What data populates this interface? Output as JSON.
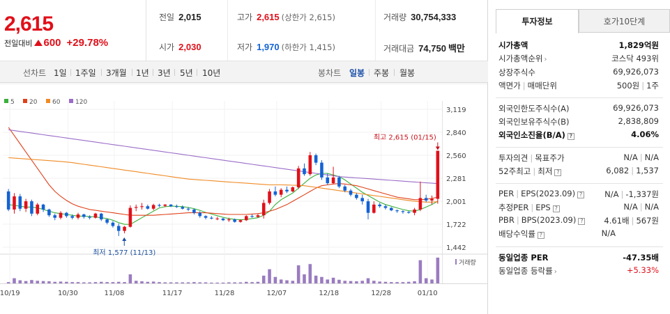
{
  "quote": {
    "price": "2,615",
    "change_label": "전일대비",
    "change_amount": "600",
    "change_rate": "+29.78%",
    "prev_label": "전일",
    "prev": "2,015",
    "open_label": "시가",
    "open": "2,030",
    "high_label": "고가",
    "high": "2,615",
    "high_note": "(상한가 2,615)",
    "low_label": "저가",
    "low": "1,970",
    "low_note": "(하한가 1,415)",
    "volume_label": "거래량",
    "volume": "30,754,333",
    "value_label": "거래대금",
    "value": "74,750",
    "value_unit": "백만"
  },
  "toolbar": {
    "line_label": "선차트",
    "periods": [
      "1일",
      "1주일",
      "3개월",
      "1년",
      "3년",
      "5년",
      "10년"
    ],
    "candle_label": "봉차트",
    "candles": [
      "일봉",
      "주봉",
      "월봉"
    ],
    "selected_candle": "일봉"
  },
  "chart_data": {
    "type": "candlestick",
    "legend": [
      {
        "name": "5",
        "color": "#3ab03a"
      },
      {
        "name": "20",
        "color": "#e0401a"
      },
      {
        "name": "60",
        "color": "#f08a24"
      },
      {
        "name": "120",
        "color": "#9a6cc8"
      }
    ],
    "yticks": [
      "3,119",
      "2,840",
      "2,560",
      "2,281",
      "2,001",
      "1,722",
      "1,442"
    ],
    "ylim": [
      1442,
      3119
    ],
    "xticks": [
      "10/19",
      "10/30",
      "11/08",
      "11/17",
      "11/28",
      "12/07",
      "12/18",
      "12/28",
      "01/10"
    ],
    "max_annotation": "최고 2,615 (01/15)",
    "min_annotation": "최저 1,577 (11/13)",
    "volume_label": "거래량",
    "up_color": "#e0101a",
    "down_color": "#1462d4",
    "candles": [
      {
        "o": 2120,
        "h": 2150,
        "l": 1880,
        "c": 1900,
        "v": 0.05
      },
      {
        "o": 1900,
        "h": 2100,
        "l": 1850,
        "c": 2060,
        "v": 0.2
      },
      {
        "o": 2060,
        "h": 2090,
        "l": 1880,
        "c": 1910,
        "v": 0.12
      },
      {
        "o": 1910,
        "h": 2030,
        "l": 1870,
        "c": 2000,
        "v": 0.09
      },
      {
        "o": 2000,
        "h": 2020,
        "l": 1820,
        "c": 1850,
        "v": 0.13
      },
      {
        "o": 1850,
        "h": 1980,
        "l": 1830,
        "c": 1960,
        "v": 0.1
      },
      {
        "o": 1960,
        "h": 1970,
        "l": 1870,
        "c": 1900,
        "v": 0.09
      },
      {
        "o": 1900,
        "h": 1910,
        "l": 1810,
        "c": 1830,
        "v": 0.08
      },
      {
        "o": 1830,
        "h": 1850,
        "l": 1770,
        "c": 1800,
        "v": 0.06
      },
      {
        "o": 1800,
        "h": 1880,
        "l": 1780,
        "c": 1860,
        "v": 0.07
      },
      {
        "o": 1860,
        "h": 1870,
        "l": 1800,
        "c": 1820,
        "v": 0.06
      },
      {
        "o": 1820,
        "h": 1840,
        "l": 1780,
        "c": 1800,
        "v": 0.05
      },
      {
        "o": 1800,
        "h": 1860,
        "l": 1780,
        "c": 1840,
        "v": 0.05
      },
      {
        "o": 1840,
        "h": 1850,
        "l": 1790,
        "c": 1810,
        "v": 0.04
      },
      {
        "o": 1810,
        "h": 1830,
        "l": 1780,
        "c": 1800,
        "v": 0.04
      },
      {
        "o": 1800,
        "h": 1860,
        "l": 1790,
        "c": 1850,
        "v": 0.05
      },
      {
        "o": 1850,
        "h": 1860,
        "l": 1760,
        "c": 1780,
        "v": 0.06
      },
      {
        "o": 1780,
        "h": 1790,
        "l": 1720,
        "c": 1740,
        "v": 0.05
      },
      {
        "o": 1740,
        "h": 1760,
        "l": 1680,
        "c": 1700,
        "v": 0.05
      },
      {
        "o": 1700,
        "h": 1730,
        "l": 1577,
        "c": 1640,
        "v": 0.06
      },
      {
        "o": 1640,
        "h": 1700,
        "l": 1610,
        "c": 1690,
        "v": 0.05
      },
      {
        "o": 1690,
        "h": 1950,
        "l": 1680,
        "c": 1920,
        "v": 0.35
      },
      {
        "o": 1920,
        "h": 1960,
        "l": 1880,
        "c": 1930,
        "v": 0.1
      },
      {
        "o": 1930,
        "h": 1980,
        "l": 1900,
        "c": 1940,
        "v": 0.08
      },
      {
        "o": 1940,
        "h": 1960,
        "l": 1900,
        "c": 1910,
        "v": 0.06
      },
      {
        "o": 1910,
        "h": 1970,
        "l": 1890,
        "c": 1955,
        "v": 0.07
      },
      {
        "o": 1955,
        "h": 1970,
        "l": 1930,
        "c": 1945,
        "v": 0.05
      },
      {
        "o": 1945,
        "h": 1965,
        "l": 1930,
        "c": 1960,
        "v": 0.04
      },
      {
        "o": 1960,
        "h": 1965,
        "l": 1930,
        "c": 1940,
        "v": 0.04
      },
      {
        "o": 1940,
        "h": 1960,
        "l": 1920,
        "c": 1930,
        "v": 0.04
      },
      {
        "o": 1930,
        "h": 1950,
        "l": 1900,
        "c": 1910,
        "v": 0.04
      },
      {
        "o": 1910,
        "h": 1930,
        "l": 1880,
        "c": 1900,
        "v": 0.04
      },
      {
        "o": 1900,
        "h": 1910,
        "l": 1840,
        "c": 1860,
        "v": 0.05
      },
      {
        "o": 1860,
        "h": 1880,
        "l": 1800,
        "c": 1820,
        "v": 0.04
      },
      {
        "o": 1820,
        "h": 1830,
        "l": 1780,
        "c": 1800,
        "v": 0.04
      },
      {
        "o": 1800,
        "h": 1820,
        "l": 1780,
        "c": 1790,
        "v": 0.03
      },
      {
        "o": 1790,
        "h": 1810,
        "l": 1770,
        "c": 1790,
        "v": 0.03
      },
      {
        "o": 1790,
        "h": 1800,
        "l": 1760,
        "c": 1770,
        "v": 0.03
      },
      {
        "o": 1770,
        "h": 1800,
        "l": 1750,
        "c": 1780,
        "v": 0.04
      },
      {
        "o": 1780,
        "h": 1790,
        "l": 1740,
        "c": 1750,
        "v": 0.04
      },
      {
        "o": 1750,
        "h": 1780,
        "l": 1740,
        "c": 1770,
        "v": 0.04
      },
      {
        "o": 1770,
        "h": 1830,
        "l": 1760,
        "c": 1820,
        "v": 0.06
      },
      {
        "o": 1820,
        "h": 1840,
        "l": 1800,
        "c": 1810,
        "v": 0.05
      },
      {
        "o": 1810,
        "h": 1850,
        "l": 1800,
        "c": 1830,
        "v": 0.06
      },
      {
        "o": 1830,
        "h": 2020,
        "l": 1790,
        "c": 1980,
        "v": 0.3
      },
      {
        "o": 1980,
        "h": 2150,
        "l": 1960,
        "c": 2120,
        "v": 0.55
      },
      {
        "o": 2120,
        "h": 2180,
        "l": 2060,
        "c": 2080,
        "v": 0.25
      },
      {
        "o": 2080,
        "h": 2160,
        "l": 2050,
        "c": 2140,
        "v": 0.15
      },
      {
        "o": 2140,
        "h": 2180,
        "l": 2100,
        "c": 2120,
        "v": 0.12
      },
      {
        "o": 2120,
        "h": 2180,
        "l": 2110,
        "c": 2170,
        "v": 0.1
      },
      {
        "o": 2170,
        "h": 2430,
        "l": 2150,
        "c": 2400,
        "v": 0.7
      },
      {
        "o": 2400,
        "h": 2460,
        "l": 2310,
        "c": 2330,
        "v": 0.35
      },
      {
        "o": 2330,
        "h": 2600,
        "l": 2310,
        "c": 2560,
        "v": 0.75
      },
      {
        "o": 2560,
        "h": 2580,
        "l": 2440,
        "c": 2470,
        "v": 0.3
      },
      {
        "o": 2470,
        "h": 2500,
        "l": 2260,
        "c": 2290,
        "v": 0.25
      },
      {
        "o": 2290,
        "h": 2340,
        "l": 2200,
        "c": 2220,
        "v": 0.15
      },
      {
        "o": 2220,
        "h": 2420,
        "l": 2210,
        "c": 2290,
        "v": 0.22
      },
      {
        "o": 2290,
        "h": 2310,
        "l": 2160,
        "c": 2180,
        "v": 0.14
      },
      {
        "o": 2180,
        "h": 2200,
        "l": 2110,
        "c": 2130,
        "v": 0.1
      },
      {
        "o": 2130,
        "h": 2150,
        "l": 2060,
        "c": 2080,
        "v": 0.09
      },
      {
        "o": 2080,
        "h": 2100,
        "l": 2020,
        "c": 2040,
        "v": 0.08
      },
      {
        "o": 2040,
        "h": 2080,
        "l": 1960,
        "c": 2000,
        "v": 0.1
      },
      {
        "o": 2000,
        "h": 2030,
        "l": 1780,
        "c": 1860,
        "v": 0.2
      },
      {
        "o": 1860,
        "h": 2000,
        "l": 1850,
        "c": 1960,
        "v": 0.1
      },
      {
        "o": 1960,
        "h": 1980,
        "l": 1920,
        "c": 1940,
        "v": 0.07
      },
      {
        "o": 1940,
        "h": 1960,
        "l": 1900,
        "c": 1920,
        "v": 0.06
      },
      {
        "o": 1920,
        "h": 1930,
        "l": 1880,
        "c": 1890,
        "v": 0.05
      },
      {
        "o": 1890,
        "h": 1900,
        "l": 1860,
        "c": 1880,
        "v": 0.05
      },
      {
        "o": 1880,
        "h": 1890,
        "l": 1850,
        "c": 1870,
        "v": 0.05
      },
      {
        "o": 1870,
        "h": 1880,
        "l": 1850,
        "c": 1860,
        "v": 0.06
      },
      {
        "o": 1860,
        "h": 1920,
        "l": 1830,
        "c": 1900,
        "v": 0.08
      },
      {
        "o": 1900,
        "h": 2240,
        "l": 1880,
        "c": 2040,
        "v": 0.9
      },
      {
        "o": 2040,
        "h": 2080,
        "l": 1990,
        "c": 2010,
        "v": 0.2
      },
      {
        "o": 2010,
        "h": 2070,
        "l": 1960,
        "c": 2030,
        "v": 0.15
      },
      {
        "o": 2030,
        "h": 2615,
        "l": 1970,
        "c": 2615,
        "v": 1.0
      }
    ],
    "ma": {
      "5": [
        1960,
        1950,
        1940,
        1930,
        1930,
        1920,
        1900,
        1880,
        1860,
        1850,
        1840,
        1830,
        1820,
        1820,
        1815,
        1810,
        1800,
        1790,
        1770,
        1740,
        1720,
        1720,
        1760,
        1800,
        1840,
        1880,
        1920,
        1935,
        1940,
        1940,
        1935,
        1925,
        1910,
        1890,
        1865,
        1845,
        1825,
        1805,
        1790,
        1780,
        1775,
        1780,
        1790,
        1800,
        1830,
        1880,
        1960,
        2020,
        2060,
        2100,
        2160,
        2220,
        2280,
        2320,
        2340,
        2340,
        2320,
        2300,
        2260,
        2210,
        2160,
        2110,
        2070,
        2030,
        1990,
        1960,
        1940,
        1920,
        1900,
        1885,
        1880,
        1900,
        1930,
        1960,
        2000
      ],
      "20": [
        2900,
        2800,
        2700,
        2600,
        2500,
        2400,
        2300,
        2200,
        2120,
        2060,
        2010,
        1970,
        1940,
        1920,
        1900,
        1890,
        1880,
        1870,
        1860,
        1850,
        1840,
        1830,
        1830,
        1830,
        1830,
        1830,
        1835,
        1840,
        1845,
        1850,
        1855,
        1860,
        1860,
        1860,
        1860,
        1855,
        1850,
        1845,
        1840,
        1840,
        1840,
        1840,
        1845,
        1850,
        1860,
        1880,
        1900,
        1930,
        1960,
        2000,
        2040,
        2080,
        2120,
        2160,
        2190,
        2200,
        2210,
        2215,
        2210,
        2200,
        2190,
        2170,
        2150,
        2130,
        2110,
        2090,
        2070,
        2050,
        2040,
        2030,
        2020,
        2020,
        2025,
        2035,
        2050
      ],
      "60": [
        2530,
        2525,
        2520,
        2515,
        2510,
        2505,
        2500,
        2495,
        2490,
        2485,
        2478,
        2470,
        2460,
        2450,
        2440,
        2430,
        2420,
        2410,
        2400,
        2390,
        2380,
        2370,
        2360,
        2350,
        2340,
        2330,
        2320,
        2310,
        2300,
        2290,
        2280,
        2270,
        2265,
        2260,
        2255,
        2250,
        2245,
        2240,
        2235,
        2230,
        2225,
        2220,
        2215,
        2210,
        2205,
        2200,
        2200,
        2200,
        2198,
        2196,
        2194,
        2190,
        2180,
        2170,
        2160,
        2150,
        2140,
        2130,
        2120,
        2110,
        2100,
        2090,
        2080,
        2070,
        2060,
        2050,
        2040,
        2030,
        2020,
        2010,
        2000,
        1995,
        1990,
        1990,
        1995
      ],
      "120": [
        2870,
        2860,
        2850,
        2840,
        2830,
        2820,
        2810,
        2800,
        2790,
        2780,
        2770,
        2760,
        2750,
        2740,
        2730,
        2720,
        2710,
        2700,
        2690,
        2680,
        2670,
        2660,
        2650,
        2640,
        2630,
        2620,
        2610,
        2600,
        2590,
        2580,
        2570,
        2560,
        2550,
        2540,
        2530,
        2520,
        2510,
        2500,
        2490,
        2480,
        2470,
        2460,
        2450,
        2440,
        2430,
        2420,
        2410,
        2400,
        2390,
        2380,
        2370,
        2360,
        2350,
        2340,
        2330,
        2320,
        2310,
        2300,
        2295,
        2290,
        2285,
        2280,
        2275,
        2270,
        2265,
        2260,
        2255,
        2250,
        2245,
        2240,
        2235,
        2230,
        2225,
        2220,
        2215
      ]
    }
  },
  "tabs": {
    "active": "투자정보",
    "inactive": "호가10단계"
  },
  "info": {
    "market_cap_label": "시가총액",
    "market_cap": "1,829억원",
    "market_cap_rank_label": "시가총액순위",
    "market_cap_rank": "코스닥 493위",
    "listed_shares_label": "상장주식수",
    "listed_shares": "69,926,073",
    "par_label": "액면가",
    "unit_label": "매매단위",
    "par": "500원",
    "unit": "1주",
    "foreign_limit_label": "외국인한도주식수(A)",
    "foreign_limit": "69,926,073",
    "foreign_hold_label": "외국인보유주식수(B)",
    "foreign_hold": "2,838,809",
    "foreign_ratio_label": "외국인소진율(B/A)",
    "foreign_ratio": "4.06%",
    "opinion_label": "투자의견",
    "target_label": "목표주가",
    "opinion": "N/A",
    "target": "N/A",
    "w52_high_label": "52주최고",
    "w52_low_label": "최저",
    "w52_high": "6,082",
    "w52_low": "1,537",
    "per_label": "PER",
    "eps_label": "EPS(2023.09)",
    "per": "N/A",
    "eps": "-1,337원",
    "est_per_label": "추정PER",
    "est_eps_label": "EPS",
    "est_per": "N/A",
    "est_eps": "N/A",
    "pbr_label": "PBR",
    "bps_label": "BPS(2023.09)",
    "pbr": "4.61배",
    "bps": "567원",
    "div_label": "배당수익률",
    "div": "N/A",
    "sector_per_label": "동일업종 PER",
    "sector_per": "-47.35배",
    "sector_rate_label": "동일업종 등락률",
    "sector_rate": "+5.33%"
  }
}
